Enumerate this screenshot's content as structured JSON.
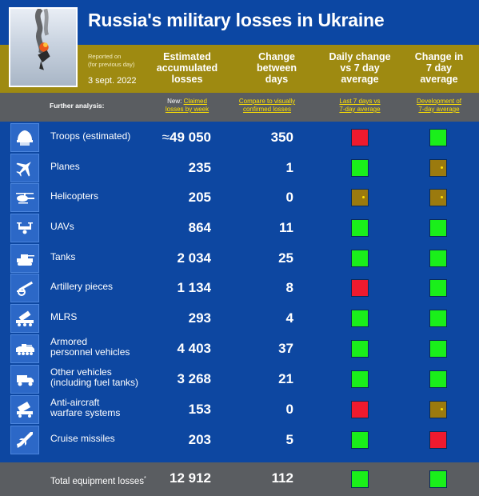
{
  "title": "Russia's military losses in Ukraine",
  "report": {
    "reported_on": "Reported on",
    "for_previous_day": "(for previous day)",
    "date": "3 sept. 2022"
  },
  "headers": {
    "estimated": [
      "Estimated",
      "accumulated",
      "losses"
    ],
    "change": [
      "Change",
      "between",
      "days"
    ],
    "daily": [
      "Daily change",
      "vs 7 day",
      "average"
    ],
    "avg": [
      "Change in",
      "7 day",
      "average"
    ]
  },
  "further": {
    "label": "Further analysis:",
    "new_prefix": "New:",
    "link1": [
      "Claimed",
      "losses by week"
    ],
    "link2": [
      "Compare to visually",
      "confirmed losses"
    ],
    "link3": [
      "Last 7 days vs",
      "7-day average"
    ],
    "link4": [
      "Development of",
      "7-day average"
    ]
  },
  "approx_symbol": "≈",
  "rows": [
    {
      "icon": "helmet-icon",
      "label": [
        "Troops (estimated)"
      ],
      "estimated": "49 050",
      "change": "350",
      "daily": "red",
      "avg": "green"
    },
    {
      "icon": "jet-icon",
      "label": [
        "Planes"
      ],
      "estimated": "235",
      "change": "1",
      "daily": "green",
      "avg": "amber"
    },
    {
      "icon": "helicopter-icon",
      "label": [
        "Helicopters"
      ],
      "estimated": "205",
      "change": "0",
      "daily": "amber",
      "avg": "amber"
    },
    {
      "icon": "drone-icon",
      "label": [
        "UAVs"
      ],
      "estimated": "864",
      "change": "11",
      "daily": "green",
      "avg": "green"
    },
    {
      "icon": "tank-icon",
      "label": [
        "Tanks"
      ],
      "estimated": "2 034",
      "change": "25",
      "daily": "green",
      "avg": "green"
    },
    {
      "icon": "artillery-icon",
      "label": [
        "Artillery pieces"
      ],
      "estimated": "1 134",
      "change": "8",
      "daily": "red",
      "avg": "green"
    },
    {
      "icon": "mlrs-icon",
      "label": [
        "MLRS"
      ],
      "estimated": "293",
      "change": "4",
      "daily": "green",
      "avg": "green"
    },
    {
      "icon": "apc-icon",
      "label": [
        "Armored",
        "personnel vehicles"
      ],
      "estimated": "4 403",
      "change": "37",
      "daily": "green",
      "avg": "green"
    },
    {
      "icon": "truck-icon",
      "label": [
        "Other vehicles",
        "(including fuel tanks)"
      ],
      "estimated": "3 268",
      "change": "21",
      "daily": "green",
      "avg": "green"
    },
    {
      "icon": "anti-aircraft-icon",
      "label": [
        "Anti-aircraft",
        "warfare systems"
      ],
      "estimated": "153",
      "change": "0",
      "daily": "red",
      "avg": "amber"
    },
    {
      "icon": "missile-icon",
      "label": [
        "Cruise missiles"
      ],
      "estimated": "203",
      "change": "5",
      "daily": "green",
      "avg": "red"
    }
  ],
  "total": {
    "label": "Total equipment losses",
    "marker": "*",
    "estimated": "12 912",
    "change": "112",
    "daily": "green",
    "avg": "green"
  },
  "colors": {
    "background": "#0d47a1",
    "band": "#9e8a11",
    "green": "#1aef1a",
    "red": "#ef1a2e",
    "amber": "#9b7a0e",
    "link": "#ffe100"
  }
}
